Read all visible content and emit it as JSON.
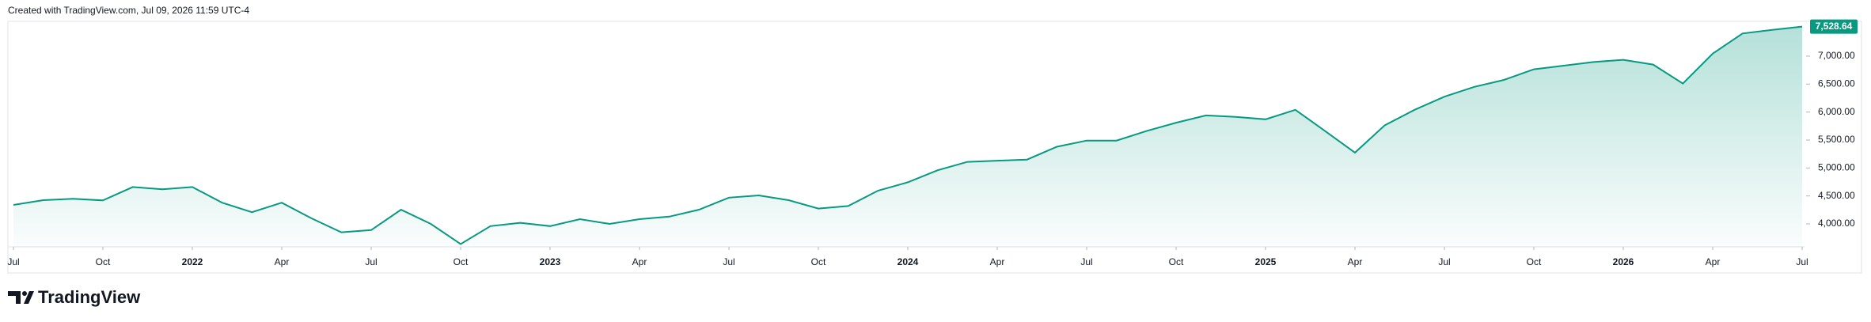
{
  "header": {
    "created": "Created with TradingView.com, Jul 09, 2026 11:59 UTC-4"
  },
  "footer": {
    "brand": "TradingView"
  },
  "chart_data": {
    "type": "area",
    "color": "#089981",
    "x": [
      "2021-07",
      "2021-08",
      "2021-09",
      "2021-10",
      "2021-11",
      "2021-12",
      "2022-01",
      "2022-02",
      "2022-03",
      "2022-04",
      "2022-05",
      "2022-06",
      "2022-07",
      "2022-08",
      "2022-09",
      "2022-10",
      "2022-11",
      "2022-12",
      "2023-01",
      "2023-02",
      "2023-03",
      "2023-04",
      "2023-05",
      "2023-06",
      "2023-07",
      "2023-08",
      "2023-09",
      "2023-10",
      "2023-11",
      "2023-12",
      "2024-01",
      "2024-02",
      "2024-03",
      "2024-04",
      "2024-05",
      "2024-06",
      "2024-07",
      "2024-08",
      "2024-09",
      "2024-10",
      "2024-11",
      "2024-12",
      "2025-01",
      "2025-02",
      "2025-03",
      "2025-04",
      "2025-05",
      "2025-06",
      "2025-07",
      "2025-08",
      "2025-09",
      "2025-10",
      "2025-11",
      "2025-12",
      "2026-01",
      "2026-02",
      "2026-03",
      "2026-04",
      "2026-05",
      "2026-06",
      "2026-07"
    ],
    "values": [
      4340,
      4425,
      4450,
      4420,
      4660,
      4620,
      4660,
      4380,
      4210,
      4380,
      4100,
      3850,
      3890,
      4255,
      4000,
      3640,
      3960,
      4020,
      3960,
      4085,
      4000,
      4085,
      4130,
      4255,
      4470,
      4510,
      4425,
      4275,
      4320,
      4595,
      4745,
      4960,
      5110,
      5130,
      5150,
      5380,
      5490,
      5490,
      5660,
      5810,
      5940,
      5915,
      5870,
      6040,
      5660,
      5275,
      5765,
      6040,
      6275,
      6450,
      6575,
      6765,
      6830,
      6895,
      6935,
      6850,
      6510,
      7045,
      7405,
      7470,
      7528.64
    ],
    "last_price": {
      "value": 7528.64,
      "label": "7,528.64"
    },
    "ylim": [
      3590,
      7622
    ],
    "yticks": [
      {
        "value": 4000,
        "label": "4,000.00"
      },
      {
        "value": 4500,
        "label": "4,500.00"
      },
      {
        "value": 5000,
        "label": "5,000.00"
      },
      {
        "value": 5500,
        "label": "5,500.00"
      },
      {
        "value": 6000,
        "label": "6,000.00"
      },
      {
        "value": 6500,
        "label": "6,500.00"
      },
      {
        "value": 7000,
        "label": "7,000.00"
      }
    ],
    "xticks": [
      {
        "value": "2021-07",
        "label": "Jul"
      },
      {
        "value": "2021-10",
        "label": "Oct"
      },
      {
        "value": "2022-01",
        "label": "2022"
      },
      {
        "value": "2022-04",
        "label": "Apr"
      },
      {
        "value": "2022-07",
        "label": "Jul"
      },
      {
        "value": "2022-10",
        "label": "Oct"
      },
      {
        "value": "2023-01",
        "label": "2023"
      },
      {
        "value": "2023-04",
        "label": "Apr"
      },
      {
        "value": "2023-07",
        "label": "Jul"
      },
      {
        "value": "2023-10",
        "label": "Oct"
      },
      {
        "value": "2024-01",
        "label": "2024"
      },
      {
        "value": "2024-04",
        "label": "Apr"
      },
      {
        "value": "2024-07",
        "label": "Jul"
      },
      {
        "value": "2024-10",
        "label": "Oct"
      },
      {
        "value": "2025-01",
        "label": "2025"
      },
      {
        "value": "2025-04",
        "label": "Apr"
      },
      {
        "value": "2025-07",
        "label": "Jul"
      },
      {
        "value": "2025-10",
        "label": "Oct"
      },
      {
        "value": "2026-01",
        "label": "2026"
      },
      {
        "value": "2026-04",
        "label": "Apr"
      },
      {
        "value": "2026-07",
        "label": "Jul"
      }
    ]
  }
}
